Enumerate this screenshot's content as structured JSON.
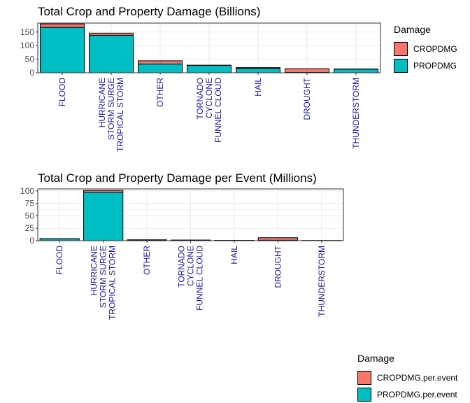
{
  "chart_data": [
    {
      "type": "bar",
      "stacked": true,
      "title": "Total Crop and Property Damage (Billions)",
      "xlabel": "",
      "ylabel": "",
      "categories": [
        [
          "FLOOD"
        ],
        [
          "HURRICANE",
          "STORM SURGE",
          "TROPICAL STORM"
        ],
        [
          "OTHER"
        ],
        [
          "TORNADO",
          "CYCLONE",
          "FUNNEL CLOUD"
        ],
        [
          "HAIL"
        ],
        [
          "DROUGHT"
        ],
        [
          "THUNDERSTORM"
        ]
      ],
      "series": [
        {
          "name": "PROPDMG",
          "values": [
            167,
            138,
            32,
            27,
            16,
            1,
            13
          ],
          "color": "#00BFC4"
        },
        {
          "name": "CROPDMG",
          "values": [
            13,
            8,
            12,
            1,
            3,
            14,
            1
          ],
          "color": "#F8766D"
        }
      ],
      "ylim": [
        0,
        183
      ],
      "yticks": [
        0,
        50,
        100,
        150
      ],
      "legend_title": "Damage",
      "legend_order": [
        "CROPDMG",
        "PROPDMG"
      ],
      "legend_position": "right",
      "grid": true
    },
    {
      "type": "bar",
      "stacked": true,
      "title": "Total Crop and Property Damage per Event (Millions)",
      "xlabel": "",
      "ylabel": "",
      "categories": [
        [
          "FLOOD"
        ],
        [
          "HURRICANE",
          "STORM SURGE",
          "TROPICAL STORM"
        ],
        [
          "OTHER"
        ],
        [
          "TORNADO",
          "CYCLONE",
          "FUNNEL CLOUD"
        ],
        [
          "HAIL"
        ],
        [
          "DROUGHT"
        ],
        [
          "THUNDERSTORM"
        ]
      ],
      "series": [
        {
          "name": "PROPDMG.per.event",
          "values": [
            3.5,
            97,
            1.4,
            1.1,
            0.5,
            0.8,
            0.3
          ],
          "color": "#00BFC4"
        },
        {
          "name": "CROPDMG.per.event",
          "values": [
            0.5,
            4,
            0.4,
            0.1,
            0.2,
            5.2,
            0.05
          ],
          "color": "#F8766D"
        }
      ],
      "ylim": [
        0,
        104
      ],
      "yticks": [
        0,
        25,
        50,
        75,
        100
      ],
      "legend_title": "Damage",
      "legend_order": [
        "CROPDMG.per.event",
        "PROPDMG.per.event"
      ],
      "legend_position": "right",
      "grid": true
    }
  ]
}
